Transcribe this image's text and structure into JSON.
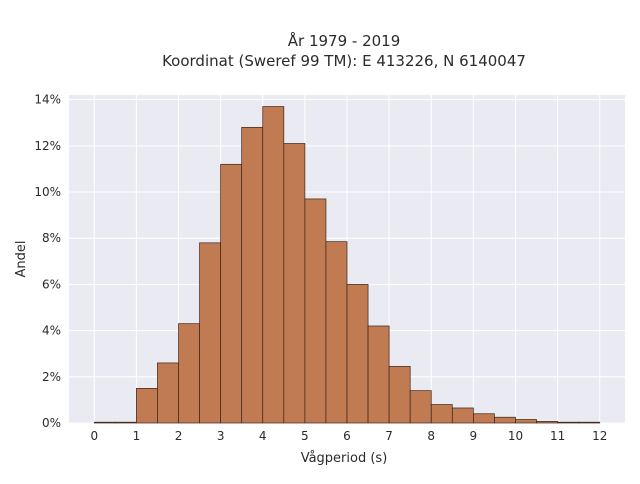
{
  "chart_data": {
    "type": "bar",
    "title_line1": "År 1979 - 2019",
    "title_line2": "Koordinat (Sweref 99 TM): E 413226, N 6140047",
    "xlabel": "Vågperiod (s)",
    "ylabel": "Andel",
    "xlim": [
      -0.6,
      12.6
    ],
    "ylim": [
      0,
      14.2
    ],
    "x_ticks": [
      "0",
      "1",
      "2",
      "3",
      "4",
      "5",
      "6",
      "7",
      "8",
      "9",
      "10",
      "11",
      "12"
    ],
    "y_ticks": [
      "0%",
      "2%",
      "4%",
      "6%",
      "8%",
      "10%",
      "12%",
      "14%"
    ],
    "bin_width": 0.5,
    "bins": [
      {
        "x": 0.0,
        "value": 0.02
      },
      {
        "x": 0.5,
        "value": 0.0
      },
      {
        "x": 1.0,
        "value": 1.5
      },
      {
        "x": 1.5,
        "value": 2.6
      },
      {
        "x": 2.0,
        "value": 4.3
      },
      {
        "x": 2.5,
        "value": 7.8
      },
      {
        "x": 3.0,
        "value": 11.2
      },
      {
        "x": 3.5,
        "value": 12.8
      },
      {
        "x": 4.0,
        "value": 13.7
      },
      {
        "x": 4.5,
        "value": 12.1
      },
      {
        "x": 5.0,
        "value": 9.7
      },
      {
        "x": 5.5,
        "value": 7.85
      },
      {
        "x": 6.0,
        "value": 6.0
      },
      {
        "x": 6.5,
        "value": 4.2
      },
      {
        "x": 7.0,
        "value": 2.45
      },
      {
        "x": 7.5,
        "value": 1.4
      },
      {
        "x": 8.0,
        "value": 0.8
      },
      {
        "x": 8.5,
        "value": 0.65
      },
      {
        "x": 9.0,
        "value": 0.4
      },
      {
        "x": 9.5,
        "value": 0.25
      },
      {
        "x": 10.0,
        "value": 0.15
      },
      {
        "x": 10.5,
        "value": 0.07
      },
      {
        "x": 11.0,
        "value": 0.03
      },
      {
        "x": 11.5,
        "value": 0.02
      }
    ],
    "grid": true,
    "colors": {
      "bar_fill": "#c07b52",
      "bar_edge": "#3d2418",
      "plot_background": "#eaeaf2",
      "grid": "#ffffff"
    }
  }
}
